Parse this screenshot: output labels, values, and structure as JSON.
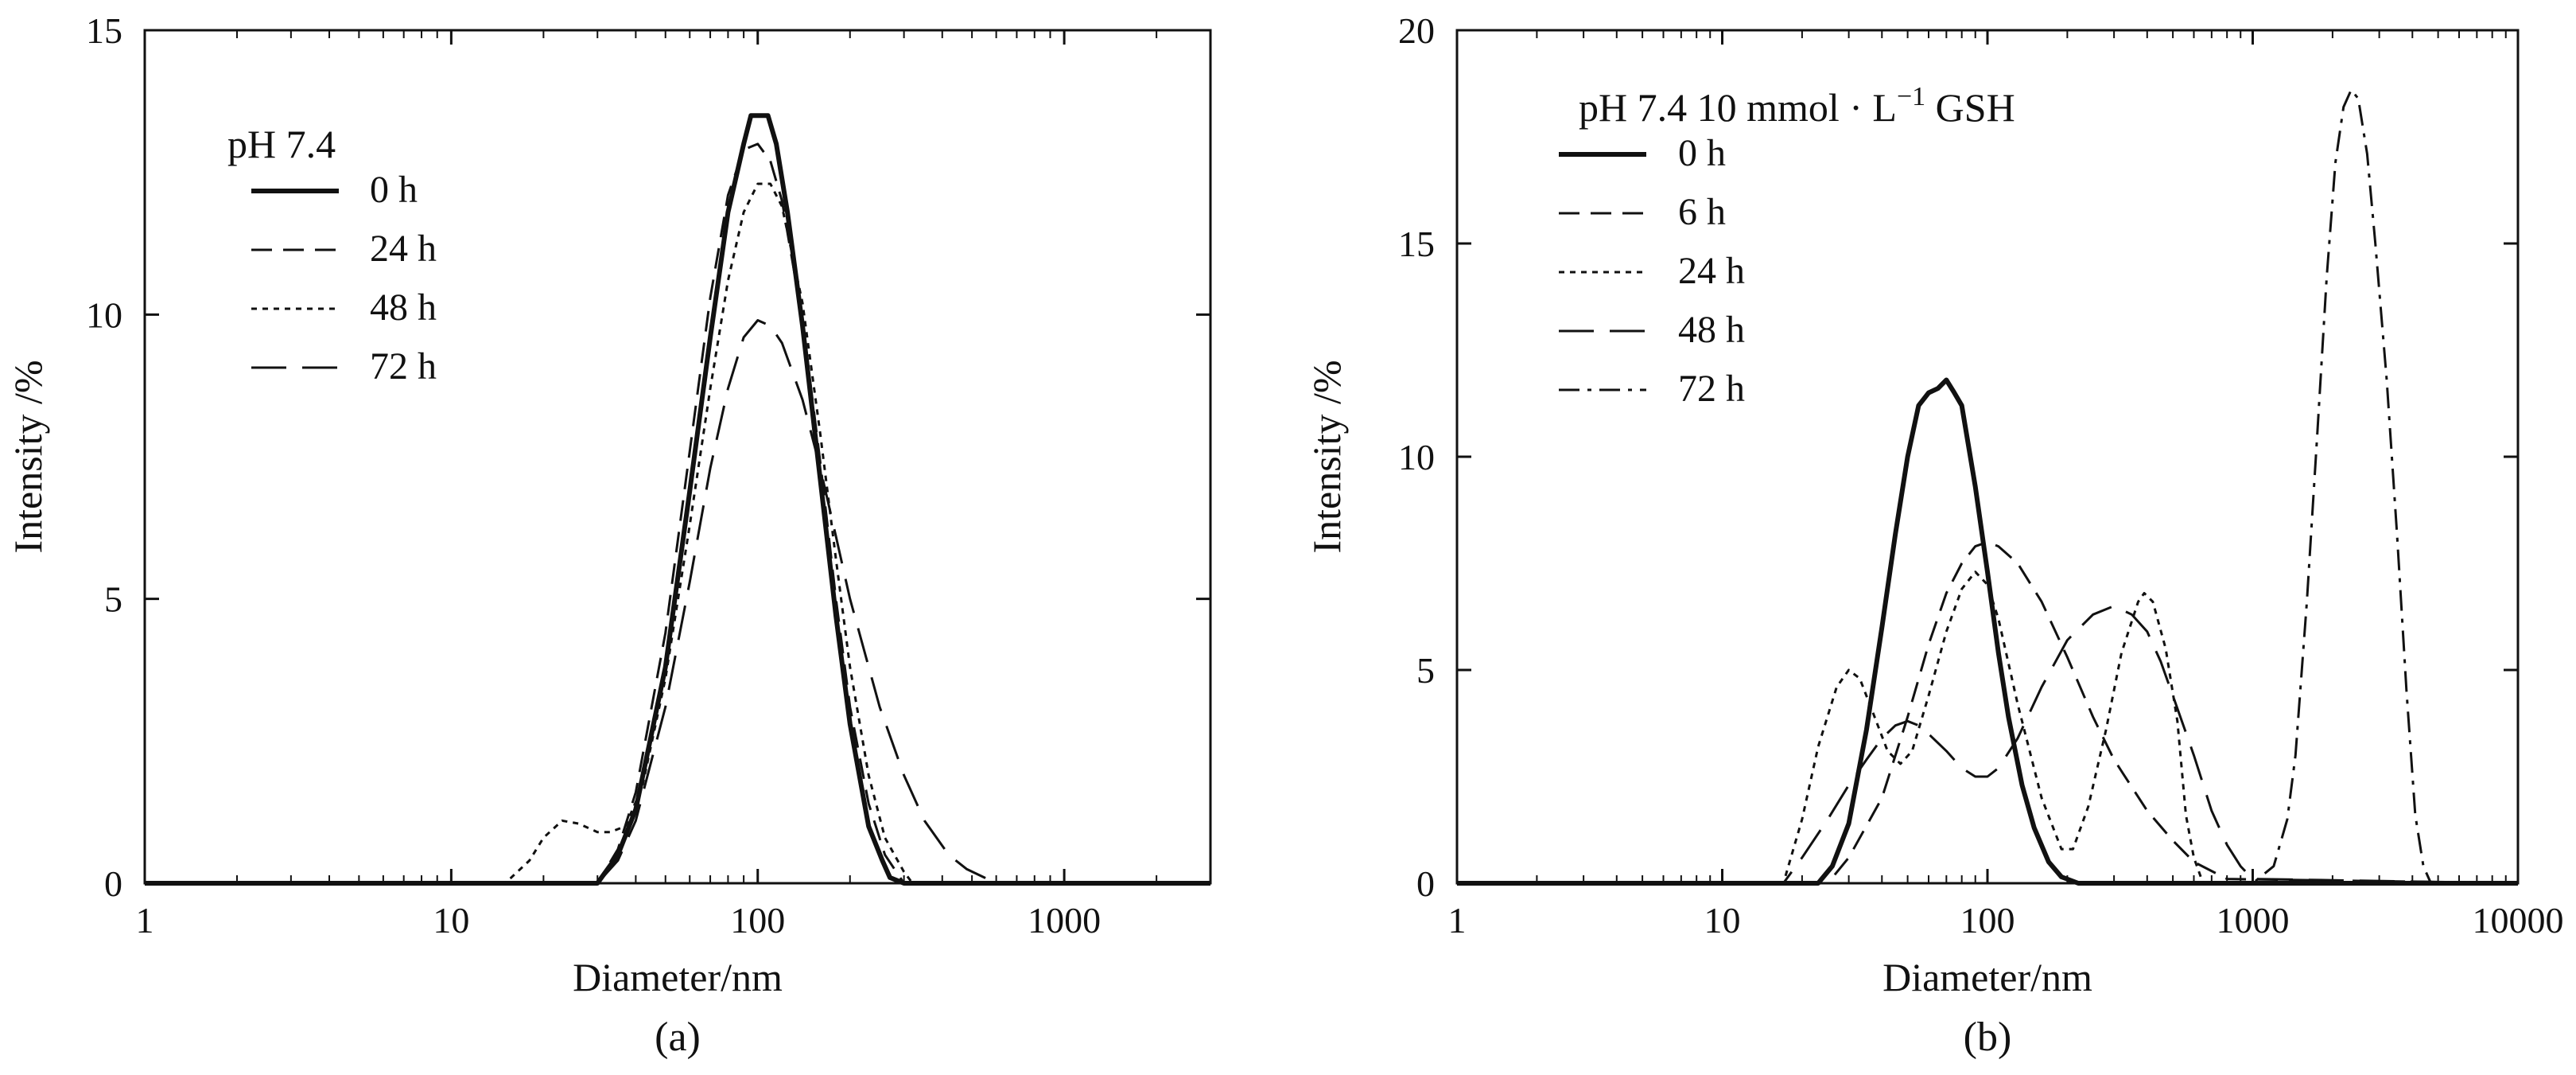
{
  "chart_data": [
    {
      "type": "line",
      "panel": "(a)",
      "xscale": "log",
      "xlim": [
        1,
        3000
      ],
      "ylim": [
        0,
        15
      ],
      "xlabel": "Diameter/nm",
      "ylabel": "Intensity /%",
      "xticks": [
        1,
        10,
        100,
        1000
      ],
      "xtick_labels": [
        "1",
        "10",
        "100",
        "1000"
      ],
      "yticks": [
        0,
        5,
        10,
        15
      ],
      "ytick_labels": [
        "0",
        "5",
        "10",
        "15"
      ],
      "legend_title": "pH 7.4",
      "legend_position": "top-left",
      "series": [
        {
          "name": "0 h",
          "style": "solid-thick",
          "x": [
            1,
            30,
            35,
            40,
            50,
            60,
            70,
            80,
            90,
            95,
            100,
            108,
            115,
            125,
            140,
            160,
            180,
            200,
            230,
            255,
            270,
            300,
            3000
          ],
          "y": [
            0,
            0,
            0.5,
            1.3,
            3.8,
            6.9,
            9.6,
            11.8,
            13.0,
            13.5,
            13.5,
            13.5,
            13.0,
            11.8,
            9.8,
            7.1,
            4.7,
            2.8,
            1.0,
            0.4,
            0.1,
            0,
            0
          ]
        },
        {
          "name": "24 h",
          "style": "dash-medium",
          "x": [
            1,
            30,
            35,
            40,
            50,
            60,
            70,
            80,
            90,
            100,
            110,
            120,
            140,
            160,
            180,
            200,
            230,
            260,
            300,
            3000
          ],
          "y": [
            0,
            0,
            0.6,
            1.6,
            4.4,
            7.6,
            10.3,
            12.1,
            12.9,
            13.0,
            12.7,
            12.0,
            9.9,
            7.4,
            5.0,
            3.1,
            1.4,
            0.5,
            0,
            0
          ]
        },
        {
          "name": "48 h",
          "style": "dot",
          "x": [
            1,
            15,
            18,
            20,
            23,
            26,
            30,
            33,
            37,
            42,
            50,
            60,
            70,
            80,
            90,
            100,
            110,
            120,
            140,
            160,
            180,
            200,
            230,
            260,
            300,
            320,
            3000
          ],
          "y": [
            0,
            0,
            0.4,
            0.8,
            1.1,
            1.05,
            0.9,
            0.9,
            1.0,
            1.7,
            3.6,
            6.3,
            8.7,
            10.6,
            11.8,
            12.3,
            12.3,
            11.9,
            10.2,
            7.9,
            5.7,
            3.8,
            1.9,
            0.8,
            0.2,
            0,
            0
          ]
        },
        {
          "name": "72 h",
          "style": "dash-long",
          "x": [
            1,
            30,
            35,
            40,
            50,
            60,
            70,
            80,
            90,
            100,
            110,
            120,
            140,
            160,
            180,
            200,
            250,
            300,
            350,
            420,
            480,
            600,
            3000
          ],
          "y": [
            0,
            0,
            0.4,
            1.1,
            3.1,
            5.3,
            7.3,
            8.7,
            9.6,
            9.9,
            9.8,
            9.5,
            8.5,
            7.3,
            6.1,
            5.0,
            3.1,
            1.9,
            1.1,
            0.5,
            0.25,
            0,
            0
          ]
        }
      ]
    },
    {
      "type": "line",
      "panel": "(b)",
      "xscale": "log",
      "xlim": [
        1,
        10000
      ],
      "ylim": [
        0,
        20
      ],
      "xlabel": "Diameter/nm",
      "ylabel": "Intensity /%",
      "xticks": [
        1,
        10,
        100,
        1000,
        10000
      ],
      "xtick_labels": [
        "1",
        "10",
        "100",
        "1000",
        "10000"
      ],
      "yticks": [
        0,
        5,
        10,
        15,
        20
      ],
      "ytick_labels": [
        "0",
        "5",
        "10",
        "15",
        "20"
      ],
      "legend_title_main": "pH 7.4 10 mmol · L",
      "legend_title_sup": "−1",
      "legend_title_tail": " GSH",
      "legend_position": "top-left",
      "series": [
        {
          "name": "0 h",
          "style": "solid-thick",
          "x": [
            1,
            23,
            26,
            30,
            35,
            40,
            45,
            50,
            55,
            60,
            65,
            70,
            75,
            80,
            90,
            100,
            110,
            120,
            135,
            150,
            170,
            190,
            220,
            10000
          ],
          "y": [
            0,
            0,
            0.4,
            1.4,
            3.6,
            6.0,
            8.2,
            10.0,
            11.2,
            11.5,
            11.6,
            11.8,
            11.5,
            11.2,
            9.3,
            7.3,
            5.4,
            3.9,
            2.3,
            1.3,
            0.5,
            0.15,
            0,
            0
          ]
        },
        {
          "name": "6 h",
          "style": "dash-medium",
          "x": [
            1,
            25,
            30,
            40,
            50,
            60,
            70,
            80,
            90,
            100,
            110,
            130,
            160,
            200,
            250,
            300,
            400,
            500,
            600,
            800,
            10000
          ],
          "y": [
            0,
            0,
            0.6,
            2.0,
            3.9,
            5.6,
            6.8,
            7.5,
            7.9,
            8.0,
            7.9,
            7.5,
            6.6,
            5.3,
            3.9,
            2.9,
            1.7,
            1.0,
            0.5,
            0.1,
            0
          ]
        },
        {
          "name": "24 h",
          "style": "dot",
          "x": [
            1,
            17,
            20,
            23,
            27,
            30,
            33,
            37,
            42,
            47,
            52,
            60,
            70,
            80,
            90,
            100,
            110,
            130,
            160,
            190,
            210,
            240,
            280,
            320,
            370,
            390,
            420,
            470,
            520,
            560,
            600,
            650,
            10000
          ],
          "y": [
            0,
            0,
            1.5,
            3.2,
            4.6,
            5.0,
            4.8,
            4.0,
            3.1,
            2.8,
            3.1,
            4.4,
            5.9,
            6.9,
            7.3,
            7.0,
            6.2,
            4.2,
            2.0,
            0.8,
            0.8,
            1.8,
            3.6,
            5.4,
            6.6,
            6.8,
            6.6,
            5.5,
            3.8,
            1.6,
            0.6,
            0,
            0
          ]
        },
        {
          "name": "48 h",
          "style": "dash-long",
          "x": [
            1,
            17,
            20,
            25,
            30,
            35,
            40,
            45,
            50,
            55,
            60,
            70,
            80,
            90,
            100,
            110,
            130,
            160,
            200,
            250,
            300,
            350,
            400,
            450,
            500,
            600,
            700,
            800,
            900,
            1000,
            10000
          ],
          "y": [
            0,
            0,
            0.6,
            1.5,
            2.3,
            2.9,
            3.4,
            3.7,
            3.8,
            3.7,
            3.5,
            3.1,
            2.7,
            2.5,
            2.5,
            2.7,
            3.4,
            4.6,
            5.7,
            6.3,
            6.5,
            6.3,
            5.9,
            5.2,
            4.4,
            3.0,
            1.7,
            0.9,
            0.4,
            0.1,
            0
          ]
        },
        {
          "name": "72 h",
          "style": "dash-dot",
          "x": [
            1,
            1000,
            1200,
            1350,
            1450,
            1600,
            1750,
            1900,
            2050,
            2200,
            2350,
            2500,
            2700,
            2900,
            3200,
            3500,
            3800,
            4100,
            4400,
            4700,
            10000
          ],
          "y": [
            0,
            0,
            0.4,
            1.5,
            3.0,
            6.6,
            10.5,
            14.2,
            16.9,
            18.2,
            18.6,
            18.4,
            17.1,
            15.0,
            11.8,
            8.2,
            4.5,
            1.6,
            0.4,
            0,
            0
          ]
        }
      ]
    }
  ]
}
